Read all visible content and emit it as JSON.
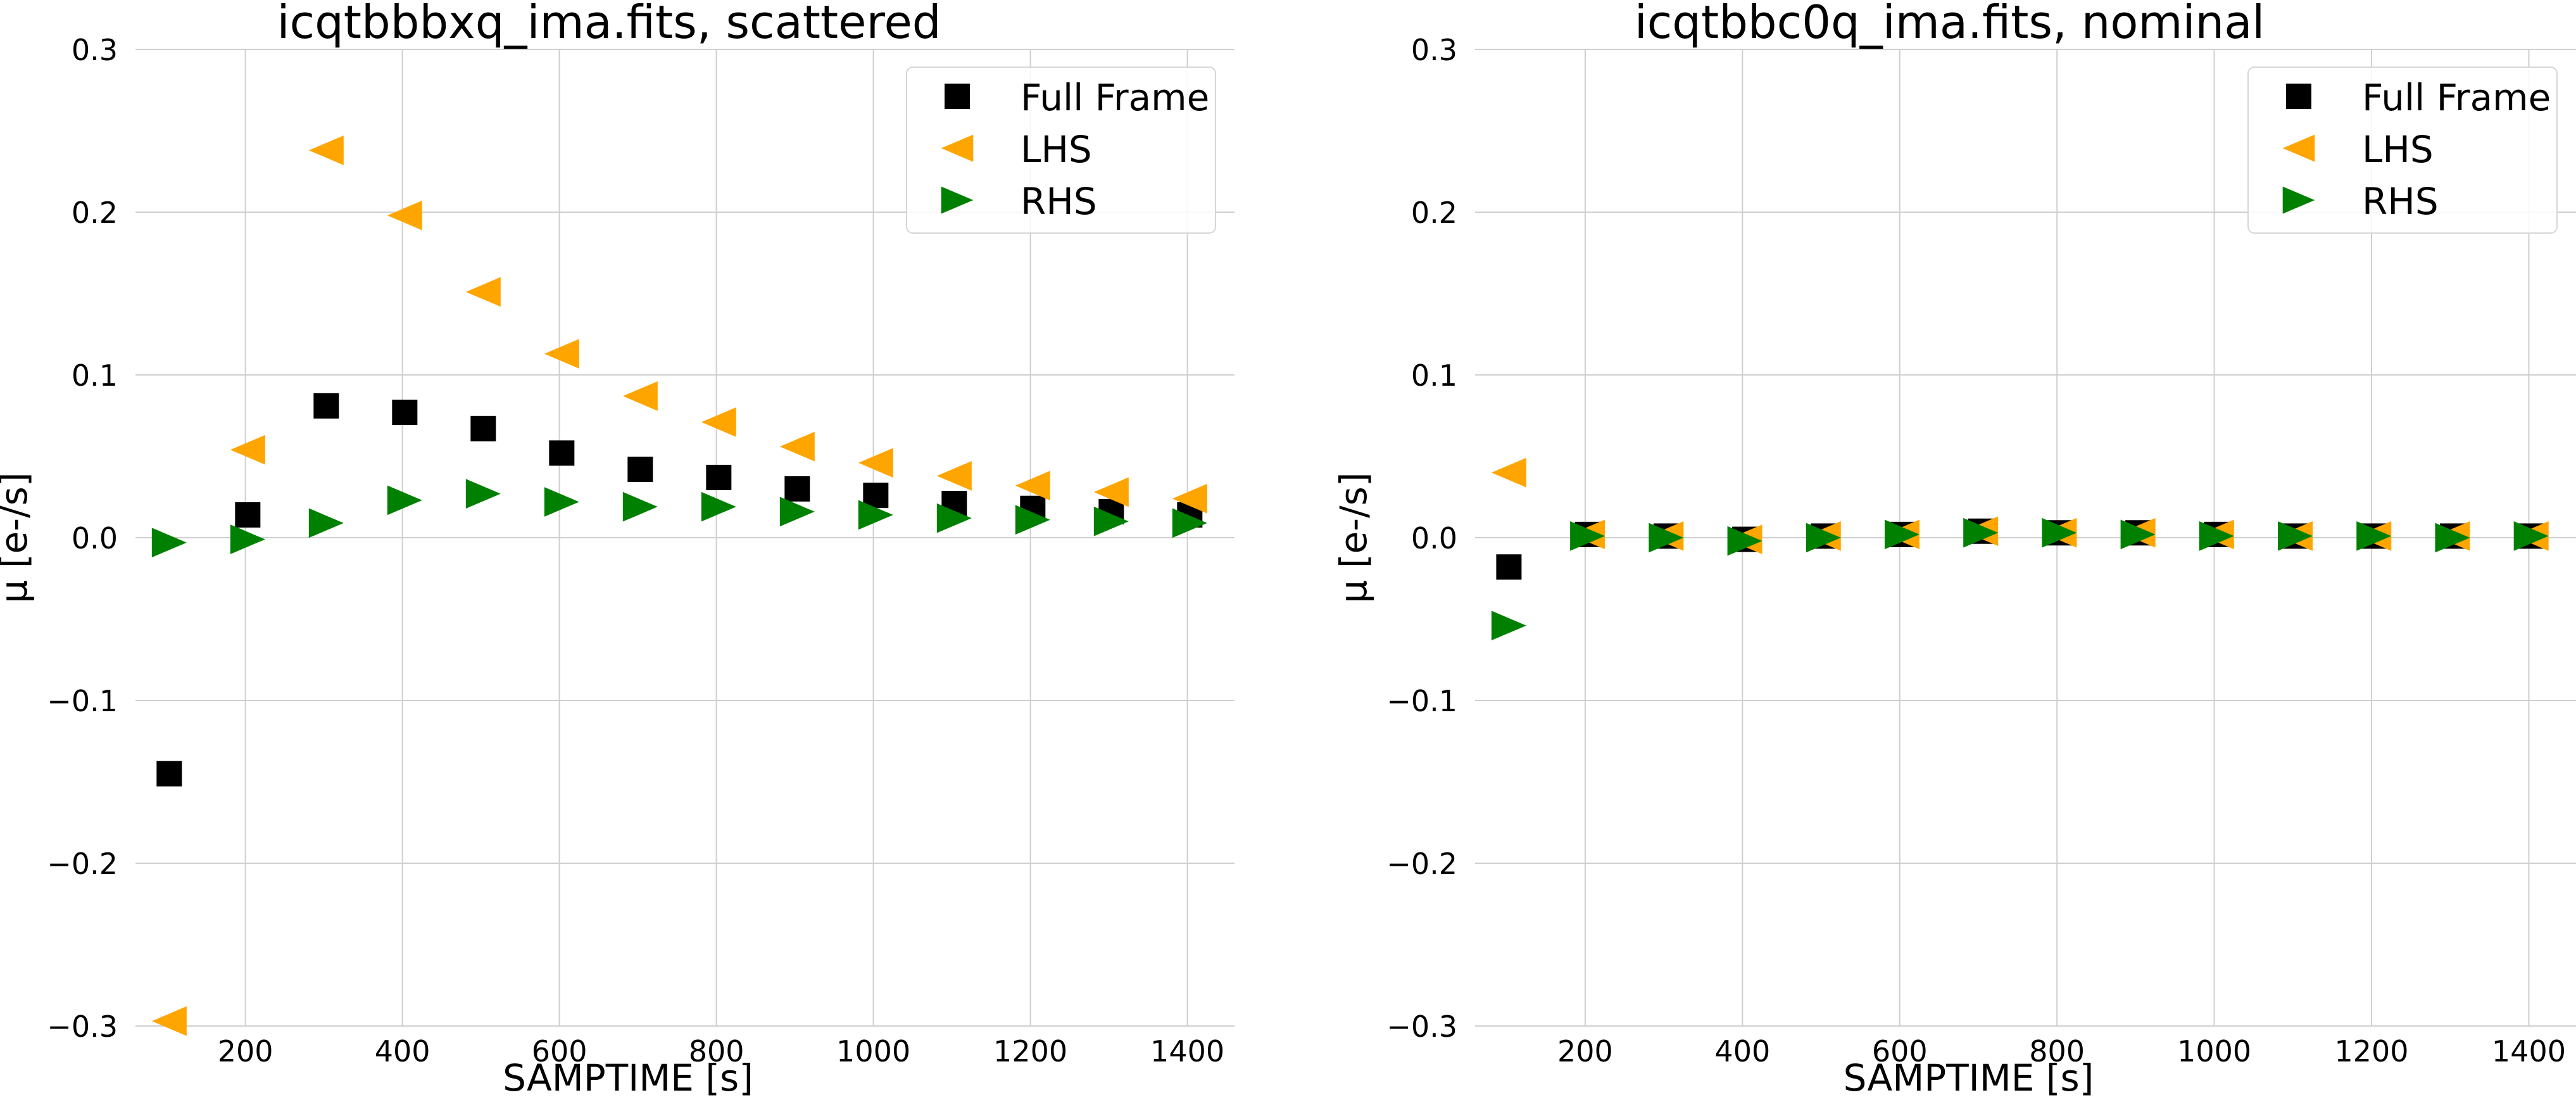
{
  "chart_data": [
    {
      "type": "scatter",
      "title": "icqtbbbxq_ima.fits, scattered",
      "xlabel": "SAMPTIME [s]",
      "ylabel": "μ [e-/s]",
      "xlim": [
        60,
        1460
      ],
      "ylim": [
        -0.3,
        0.3
      ],
      "xticks": [
        200,
        400,
        600,
        800,
        1000,
        1200,
        1400
      ],
      "yticks": [
        -0.3,
        -0.2,
        -0.1,
        0.0,
        0.1,
        0.2,
        0.3
      ],
      "ytick_labels": [
        "−0.3",
        "−0.2",
        "−0.1",
        "0.0",
        "0.1",
        "0.2",
        "0.3"
      ],
      "grid": true,
      "legend_position": "top-right",
      "x": [
        103,
        203,
        303,
        403,
        503,
        603,
        703,
        803,
        903,
        1003,
        1103,
        1203,
        1303,
        1403
      ],
      "series": [
        {
          "name": "Full Frame",
          "marker": "square",
          "color": "#000000",
          "values": [
            -0.145,
            0.014,
            0.081,
            0.077,
            0.067,
            0.052,
            0.042,
            0.037,
            0.03,
            0.026,
            0.021,
            0.018,
            0.016,
            0.014
          ]
        },
        {
          "name": "LHS",
          "marker": "triangle-left",
          "color": "#ffa500",
          "values": [
            -0.297,
            0.054,
            0.238,
            0.198,
            0.151,
            0.113,
            0.087,
            0.071,
            0.056,
            0.046,
            0.038,
            0.032,
            0.028,
            0.024
          ]
        },
        {
          "name": "RHS",
          "marker": "triangle-right",
          "color": "#008000",
          "values": [
            -0.003,
            -0.001,
            0.009,
            0.023,
            0.027,
            0.022,
            0.019,
            0.019,
            0.016,
            0.014,
            0.012,
            0.011,
            0.01,
            0.009
          ]
        }
      ]
    },
    {
      "type": "scatter",
      "title": "icqtbbc0q_ima.fits, nominal",
      "xlabel": "SAMPTIME [s]",
      "ylabel": "μ [e-/s]",
      "xlim": [
        60,
        1460
      ],
      "ylim": [
        -0.3,
        0.3
      ],
      "xticks": [
        200,
        400,
        600,
        800,
        1000,
        1200,
        1400
      ],
      "yticks": [
        -0.3,
        -0.2,
        -0.1,
        0.0,
        0.1,
        0.2,
        0.3
      ],
      "ytick_labels": [
        "−0.3",
        "−0.2",
        "−0.1",
        "0.0",
        "0.1",
        "0.2",
        "0.3"
      ],
      "grid": true,
      "legend_position": "top-right",
      "x": [
        103,
        203,
        303,
        403,
        503,
        603,
        703,
        803,
        903,
        1003,
        1103,
        1203,
        1303,
        1403
      ],
      "series": [
        {
          "name": "Full Frame",
          "marker": "square",
          "color": "#000000",
          "values": [
            -0.018,
            0.002,
            0.001,
            -0.001,
            0.001,
            0.002,
            0.004,
            0.003,
            0.003,
            0.002,
            0.001,
            0.001,
            0.001,
            0.001
          ]
        },
        {
          "name": "LHS",
          "marker": "triangle-left",
          "color": "#ffa500",
          "values": [
            0.04,
            0.002,
            0.001,
            -0.001,
            0.001,
            0.002,
            0.004,
            0.003,
            0.003,
            0.002,
            0.001,
            0.001,
            0.001,
            0.001
          ]
        },
        {
          "name": "RHS",
          "marker": "triangle-right",
          "color": "#008000",
          "values": [
            -0.054,
            0.001,
            0.0,
            -0.002,
            0.0,
            0.002,
            0.003,
            0.003,
            0.002,
            0.001,
            0.001,
            0.001,
            0.0,
            0.001
          ]
        }
      ]
    }
  ]
}
